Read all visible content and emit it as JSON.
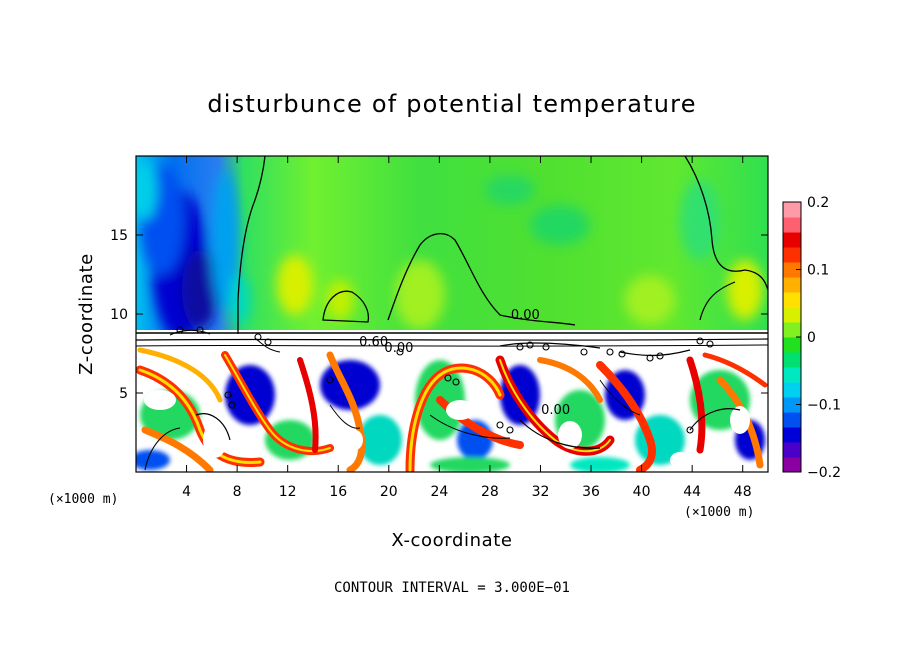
{
  "chart_data": {
    "type": "heatmap",
    "title": "disturbunce of potential temperature",
    "xlabel": "X-coordinate",
    "ylabel": "Z-coordinate",
    "x_unit": "(×1000 m)",
    "z_unit": "(×1000 m)",
    "xlim": [
      0,
      50
    ],
    "ylim": [
      0,
      20
    ],
    "x_ticks": [
      4,
      8,
      12,
      16,
      20,
      24,
      28,
      32,
      36,
      40,
      44,
      48
    ],
    "y_ticks": [
      5,
      10,
      15
    ],
    "colorbar": {
      "min": -0.2,
      "max": 0.2,
      "ticks": [
        {
          "value": 0.2,
          "label": "0.2"
        },
        {
          "value": 0.1,
          "label": "0.1"
        },
        {
          "value": 0,
          "label": "0"
        },
        {
          "value": -0.1,
          "label": "−0.1"
        },
        {
          "value": -0.2,
          "label": "−0.2"
        }
      ],
      "colors": [
        "#8a00a0",
        "#4a00c8",
        "#0000d8",
        "#0050f0",
        "#0098f8",
        "#00d0f0",
        "#00e8c0",
        "#00e070",
        "#20e020",
        "#80f020",
        "#d8f000",
        "#ffe000",
        "#ffb000",
        "#ff7800",
        "#ff3000",
        "#e80000",
        "#ff6070",
        "#ff9aa8"
      ]
    },
    "contour_labels": [
      {
        "text": "0.00",
        "x": 30.8,
        "z": 10.0
      },
      {
        "text": "0.60",
        "x": 18.8,
        "z": 8.3
      },
      {
        "text": "0.00",
        "x": 20.8,
        "z": 7.9
      },
      {
        "text": "0.00",
        "x": 33.2,
        "z": 4.0
      }
    ],
    "contour_interval_note": "CONTOUR INTERVAL = 3.000E−01"
  }
}
